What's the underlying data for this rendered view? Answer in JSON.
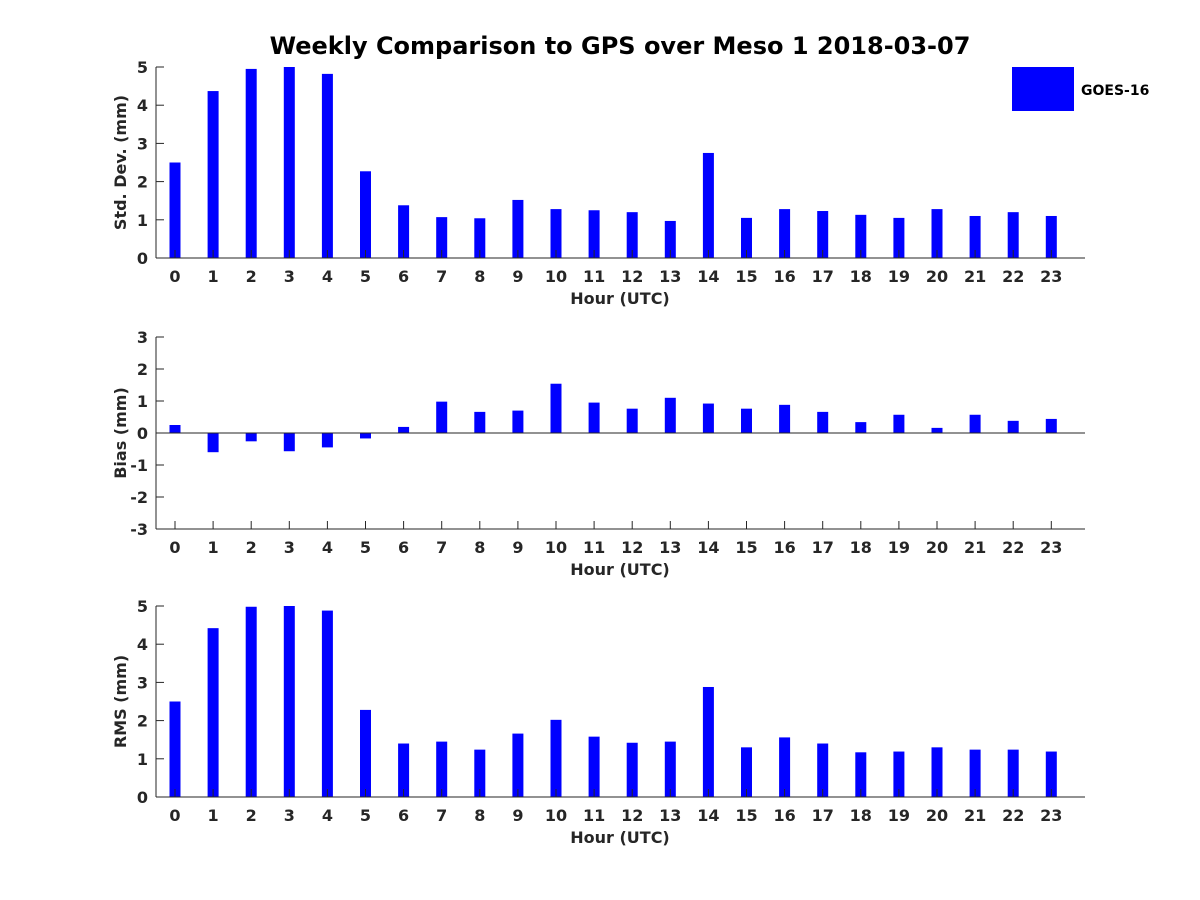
{
  "figure": {
    "title": "Weekly Comparison to GPS over Meso 1 2018-03-07",
    "bar_color": "#0000ff",
    "legend": {
      "label": "GOES-16",
      "placement": "top-right"
    }
  },
  "chart_data": [
    {
      "type": "bar",
      "id": "std",
      "title": "Weekly Comparison to GPS over Meso 1 2018-03-07",
      "xlabel": "Hour (UTC)",
      "ylabel": "Std. Dev. (mm)",
      "ylim": [
        0,
        5
      ],
      "yticks": [
        "0",
        "1",
        "2",
        "3",
        "4",
        "5"
      ],
      "categories": [
        "0",
        "1",
        "2",
        "3",
        "4",
        "5",
        "6",
        "7",
        "8",
        "9",
        "10",
        "11",
        "12",
        "13",
        "14",
        "15",
        "16",
        "17",
        "18",
        "19",
        "20",
        "21",
        "22",
        "23"
      ],
      "series": [
        {
          "name": "GOES-16",
          "values": [
            2.5,
            4.37,
            4.95,
            5.0,
            4.82,
            2.27,
            1.38,
            1.07,
            1.04,
            1.52,
            1.28,
            1.25,
            1.2,
            0.97,
            2.75,
            1.05,
            1.28,
            1.23,
            1.13,
            1.05,
            1.28,
            1.1,
            1.2,
            1.1
          ]
        }
      ]
    },
    {
      "type": "bar",
      "id": "bias",
      "xlabel": "Hour (UTC)",
      "ylabel": "Bias (mm)",
      "ylim": [
        -3,
        3
      ],
      "yticks": [
        "-3",
        "-2",
        "-1",
        "0",
        "1",
        "2",
        "3"
      ],
      "categories": [
        "0",
        "1",
        "2",
        "3",
        "4",
        "5",
        "6",
        "7",
        "8",
        "9",
        "10",
        "11",
        "12",
        "13",
        "14",
        "15",
        "16",
        "17",
        "18",
        "19",
        "20",
        "21",
        "22",
        "23"
      ],
      "series": [
        {
          "name": "GOES-16",
          "values": [
            0.25,
            -0.6,
            -0.26,
            -0.57,
            -0.45,
            -0.17,
            0.19,
            0.98,
            0.66,
            0.7,
            1.54,
            0.95,
            0.76,
            1.1,
            0.92,
            0.76,
            0.88,
            0.66,
            0.34,
            0.57,
            0.16,
            0.57,
            0.38,
            0.44
          ]
        }
      ]
    },
    {
      "type": "bar",
      "id": "rms",
      "xlabel": "Hour (UTC)",
      "ylabel": "RMS (mm)",
      "ylim": [
        0,
        5
      ],
      "yticks": [
        "0",
        "1",
        "2",
        "3",
        "4",
        "5"
      ],
      "categories": [
        "0",
        "1",
        "2",
        "3",
        "4",
        "5",
        "6",
        "7",
        "8",
        "9",
        "10",
        "11",
        "12",
        "13",
        "14",
        "15",
        "16",
        "17",
        "18",
        "19",
        "20",
        "21",
        "22",
        "23"
      ],
      "series": [
        {
          "name": "GOES-16",
          "values": [
            2.5,
            4.42,
            4.98,
            5.0,
            4.88,
            2.28,
            1.4,
            1.45,
            1.24,
            1.66,
            2.02,
            1.58,
            1.42,
            1.45,
            2.88,
            1.3,
            1.56,
            1.4,
            1.17,
            1.19,
            1.3,
            1.24,
            1.24,
            1.19
          ]
        }
      ]
    }
  ]
}
